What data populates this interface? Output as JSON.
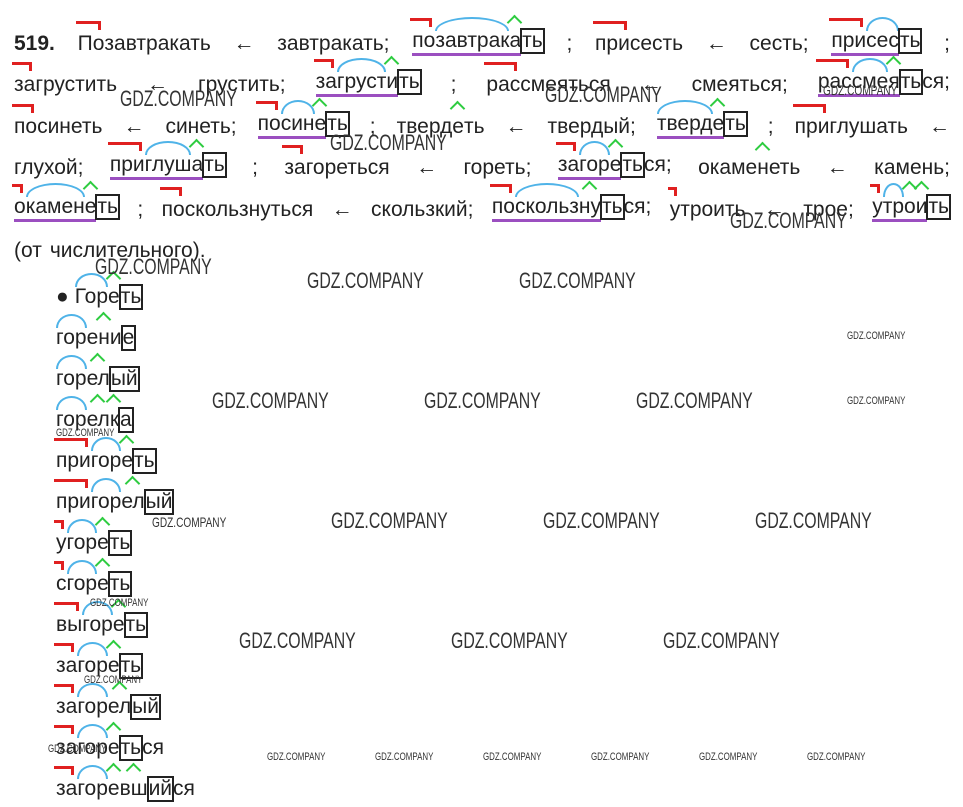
{
  "text": {
    "bullet": "●",
    "watermark": "GDZ.COMPANY",
    "lines": [
      [
        {
          "segments": [
            {
              "text": "519.",
              "kind": "n"
            }
          ]
        },
        {
          "segments": [
            {
              "text": "По",
              "kind": "p"
            },
            {
              "text": "завтракать",
              "kind": "t"
            }
          ]
        },
        {
          "segments": [
            {
              "text": "←",
              "kind": "t"
            }
          ]
        },
        {
          "segments": [
            {
              "text": "завтракать;",
              "kind": "t"
            }
          ]
        },
        {
          "base": true,
          "segments": [
            {
              "text": "по",
              "kind": "p"
            },
            {
              "text": "завтрак",
              "kind": "r"
            },
            {
              "text": "а",
              "kind": "s"
            },
            {
              "text": "ть",
              "kind": "e"
            }
          ]
        },
        {
          "segments": [
            {
              "text": ";",
              "kind": "t"
            }
          ]
        },
        {
          "segments": [
            {
              "text": "при",
              "kind": "p"
            },
            {
              "text": "сесть",
              "kind": "t"
            }
          ]
        },
        {
          "segments": [
            {
              "text": "←",
              "kind": "t"
            }
          ]
        },
        {
          "segments": [
            {
              "text": "сесть;",
              "kind": "t"
            }
          ]
        },
        {
          "base": true,
          "segments": [
            {
              "text": "при",
              "kind": "p"
            },
            {
              "text": "сес",
              "kind": "r"
            },
            {
              "text": "ть",
              "kind": "e"
            }
          ]
        },
        {
          "segments": [
            {
              "text": ";",
              "kind": "t"
            }
          ]
        }
      ],
      [
        {
          "segments": [
            {
              "text": "за",
              "kind": "p"
            },
            {
              "text": "грустить",
              "kind": "t"
            }
          ]
        },
        {
          "segments": [
            {
              "text": "←",
              "kind": "t"
            }
          ]
        },
        {
          "segments": [
            {
              "text": "грустить;",
              "kind": "t"
            }
          ]
        },
        {
          "base": true,
          "segments": [
            {
              "text": "за",
              "kind": "p"
            },
            {
              "text": "груст",
              "kind": "r"
            },
            {
              "text": "и",
              "kind": "s"
            },
            {
              "text": "ть",
              "kind": "e"
            }
          ]
        },
        {
          "segments": [
            {
              "text": ";",
              "kind": "t"
            }
          ]
        },
        {
          "segments": [
            {
              "text": "рас",
              "kind": "p"
            },
            {
              "text": "смеяться",
              "kind": "t"
            }
          ]
        },
        {
          "segments": [
            {
              "text": "←",
              "kind": "t"
            }
          ]
        },
        {
          "segments": [
            {
              "text": "смеяться;",
              "kind": "t"
            }
          ]
        },
        {
          "base": true,
          "segments": [
            {
              "text": "рас",
              "kind": "p"
            },
            {
              "text": "сме",
              "kind": "r"
            },
            {
              "text": "я",
              "kind": "s"
            },
            {
              "text": "ть",
              "kind": "e"
            },
            {
              "text": "ся",
              "kind": "x"
            },
            {
              "text": ";",
              "kind": "t"
            }
          ]
        }
      ],
      [
        {
          "segments": [
            {
              "text": "по",
              "kind": "p"
            },
            {
              "text": "синеть",
              "kind": "t"
            }
          ]
        },
        {
          "segments": [
            {
              "text": "←",
              "kind": "t"
            }
          ]
        },
        {
          "segments": [
            {
              "text": "синеть;",
              "kind": "t"
            }
          ]
        },
        {
          "base": true,
          "segments": [
            {
              "text": "по",
              "kind": "p"
            },
            {
              "text": "син",
              "kind": "r"
            },
            {
              "text": "е",
              "kind": "s"
            },
            {
              "text": "ть",
              "kind": "e"
            }
          ]
        },
        {
          "segments": [
            {
              "text": ";",
              "kind": "t"
            }
          ]
        },
        {
          "segments": [
            {
              "text": "тверд",
              "kind": "t"
            },
            {
              "text": "е",
              "kind": "s"
            },
            {
              "text": "ть",
              "kind": "t"
            }
          ]
        },
        {
          "segments": [
            {
              "text": "←",
              "kind": "t"
            }
          ]
        },
        {
          "segments": [
            {
              "text": "твердый;",
              "kind": "t"
            }
          ]
        },
        {
          "base": true,
          "segments": [
            {
              "text": "тверд",
              "kind": "r"
            },
            {
              "text": "е",
              "kind": "s"
            },
            {
              "text": "ть",
              "kind": "e"
            }
          ]
        },
        {
          "segments": [
            {
              "text": ";",
              "kind": "t"
            }
          ]
        },
        {
          "segments": [
            {
              "text": "при",
              "kind": "p"
            },
            {
              "text": "глушать",
              "kind": "t"
            }
          ]
        },
        {
          "segments": [
            {
              "text": "←",
              "kind": "t"
            }
          ]
        }
      ],
      [
        {
          "segments": [
            {
              "text": "глухой;",
              "kind": "t"
            }
          ]
        },
        {
          "base": true,
          "segments": [
            {
              "text": "при",
              "kind": "p"
            },
            {
              "text": "глуш",
              "kind": "r"
            },
            {
              "text": "а",
              "kind": "s"
            },
            {
              "text": "ть",
              "kind": "e"
            }
          ]
        },
        {
          "segments": [
            {
              "text": ";",
              "kind": "t"
            }
          ]
        },
        {
          "segments": [
            {
              "text": "за",
              "kind": "p"
            },
            {
              "text": "гореться",
              "kind": "t"
            }
          ]
        },
        {
          "segments": [
            {
              "text": "←",
              "kind": "t"
            }
          ]
        },
        {
          "segments": [
            {
              "text": "гореть;",
              "kind": "t"
            }
          ]
        },
        {
          "base": true,
          "segments": [
            {
              "text": "за",
              "kind": "p"
            },
            {
              "text": "гор",
              "kind": "r"
            },
            {
              "text": "е",
              "kind": "s"
            },
            {
              "text": "ть",
              "kind": "e"
            },
            {
              "text": "ся",
              "kind": "x"
            },
            {
              "text": ";",
              "kind": "t"
            }
          ]
        },
        {
          "segments": [
            {
              "text": "окаме",
              "kind": "t"
            },
            {
              "text": "н",
              "kind": "s"
            },
            {
              "text": "еть",
              "kind": "t"
            }
          ]
        },
        {
          "segments": [
            {
              "text": "←",
              "kind": "t"
            }
          ]
        },
        {
          "segments": [
            {
              "text": "камень;",
              "kind": "t"
            }
          ]
        }
      ],
      [
        {
          "base": true,
          "segments": [
            {
              "text": "о",
              "kind": "p"
            },
            {
              "text": "камен",
              "kind": "r"
            },
            {
              "text": "е",
              "kind": "s"
            },
            {
              "text": "ть",
              "kind": "e"
            }
          ]
        },
        {
          "segments": [
            {
              "text": ";",
              "kind": "t"
            }
          ]
        },
        {
          "segments": [
            {
              "text": "по",
              "kind": "p"
            },
            {
              "text": "скользнуться",
              "kind": "t"
            }
          ]
        },
        {
          "segments": [
            {
              "text": "←",
              "kind": "t"
            }
          ]
        },
        {
          "segments": [
            {
              "text": "скользкий;",
              "kind": "t"
            }
          ]
        },
        {
          "base": true,
          "segments": [
            {
              "text": "по",
              "kind": "p"
            },
            {
              "text": "скольз",
              "kind": "r"
            },
            {
              "text": "ну",
              "kind": "s"
            },
            {
              "text": "ть",
              "kind": "e"
            },
            {
              "text": "ся",
              "kind": "x"
            },
            {
              "text": ";",
              "kind": "t"
            }
          ]
        },
        {
          "segments": [
            {
              "text": "у",
              "kind": "p"
            },
            {
              "text": "троить",
              "kind": "t"
            }
          ]
        },
        {
          "segments": [
            {
              "text": "←",
              "kind": "t"
            }
          ]
        },
        {
          "segments": [
            {
              "text": "трое;",
              "kind": "t"
            }
          ]
        },
        {
          "base": true,
          "segments": [
            {
              "text": "у",
              "kind": "p"
            },
            {
              "text": "тр",
              "kind": "r"
            },
            {
              "text": "о",
              "kind": "s"
            },
            {
              "text": "и",
              "kind": "s"
            },
            {
              "text": "ть",
              "kind": "e"
            }
          ]
        }
      ],
      [
        {
          "segments": [
            {
              "text": "(от",
              "kind": "t"
            }
          ]
        },
        {
          "segments": [
            {
              "text": "числительного).",
              "kind": "t"
            }
          ]
        }
      ]
    ],
    "words": [
      {
        "segments": [
          {
            "text": "Гор",
            "kind": "r"
          },
          {
            "text": "е",
            "kind": "s"
          },
          {
            "text": "ть",
            "kind": "e"
          }
        ]
      },
      {
        "segments": [
          {
            "text": "гор",
            "kind": "r"
          },
          {
            "text": "ени",
            "kind": "s"
          },
          {
            "text": "е",
            "kind": "e"
          }
        ]
      },
      {
        "segments": [
          {
            "text": "гор",
            "kind": "r"
          },
          {
            "text": "ел",
            "kind": "s"
          },
          {
            "text": "ый",
            "kind": "e"
          }
        ]
      },
      {
        "segments": [
          {
            "text": "гор",
            "kind": "r"
          },
          {
            "text": "ел",
            "kind": "s"
          },
          {
            "text": "к",
            "kind": "s"
          },
          {
            "text": "а",
            "kind": "e"
          }
        ]
      },
      {
        "segments": [
          {
            "text": "при",
            "kind": "p"
          },
          {
            "text": "гор",
            "kind": "r"
          },
          {
            "text": "е",
            "kind": "s"
          },
          {
            "text": "ть",
            "kind": "e"
          }
        ]
      },
      {
        "segments": [
          {
            "text": "при",
            "kind": "p"
          },
          {
            "text": "гор",
            "kind": "r"
          },
          {
            "text": "ел",
            "kind": "s"
          },
          {
            "text": "ый",
            "kind": "e"
          }
        ]
      },
      {
        "segments": [
          {
            "text": "у",
            "kind": "p"
          },
          {
            "text": "гор",
            "kind": "r"
          },
          {
            "text": "е",
            "kind": "s"
          },
          {
            "text": "ть",
            "kind": "e"
          }
        ]
      },
      {
        "segments": [
          {
            "text": "с",
            "kind": "p"
          },
          {
            "text": "гор",
            "kind": "r"
          },
          {
            "text": "е",
            "kind": "s"
          },
          {
            "text": "ть",
            "kind": "e"
          }
        ]
      },
      {
        "segments": [
          {
            "text": "вы",
            "kind": "p"
          },
          {
            "text": "гор",
            "kind": "r"
          },
          {
            "text": "е",
            "kind": "s"
          },
          {
            "text": "ть",
            "kind": "e"
          }
        ]
      },
      {
        "segments": [
          {
            "text": "за",
            "kind": "p"
          },
          {
            "text": "гор",
            "kind": "r"
          },
          {
            "text": "е",
            "kind": "s"
          },
          {
            "text": "ть",
            "kind": "e"
          }
        ]
      },
      {
        "segments": [
          {
            "text": "за",
            "kind": "p"
          },
          {
            "text": "гор",
            "kind": "r"
          },
          {
            "text": "ел",
            "kind": "s"
          },
          {
            "text": "ый",
            "kind": "e"
          }
        ]
      },
      {
        "segments": [
          {
            "text": "за",
            "kind": "p"
          },
          {
            "text": "гор",
            "kind": "r"
          },
          {
            "text": "е",
            "kind": "s"
          },
          {
            "text": "ть",
            "kind": "e"
          },
          {
            "text": "ся",
            "kind": "x"
          }
        ]
      },
      {
        "segments": [
          {
            "text": "за",
            "kind": "p"
          },
          {
            "text": "гор",
            "kind": "r"
          },
          {
            "text": "е",
            "kind": "s"
          },
          {
            "text": "вш",
            "kind": "s"
          },
          {
            "text": "ий",
            "kind": "e"
          },
          {
            "text": "ся",
            "kind": "x"
          }
        ]
      }
    ]
  }
}
